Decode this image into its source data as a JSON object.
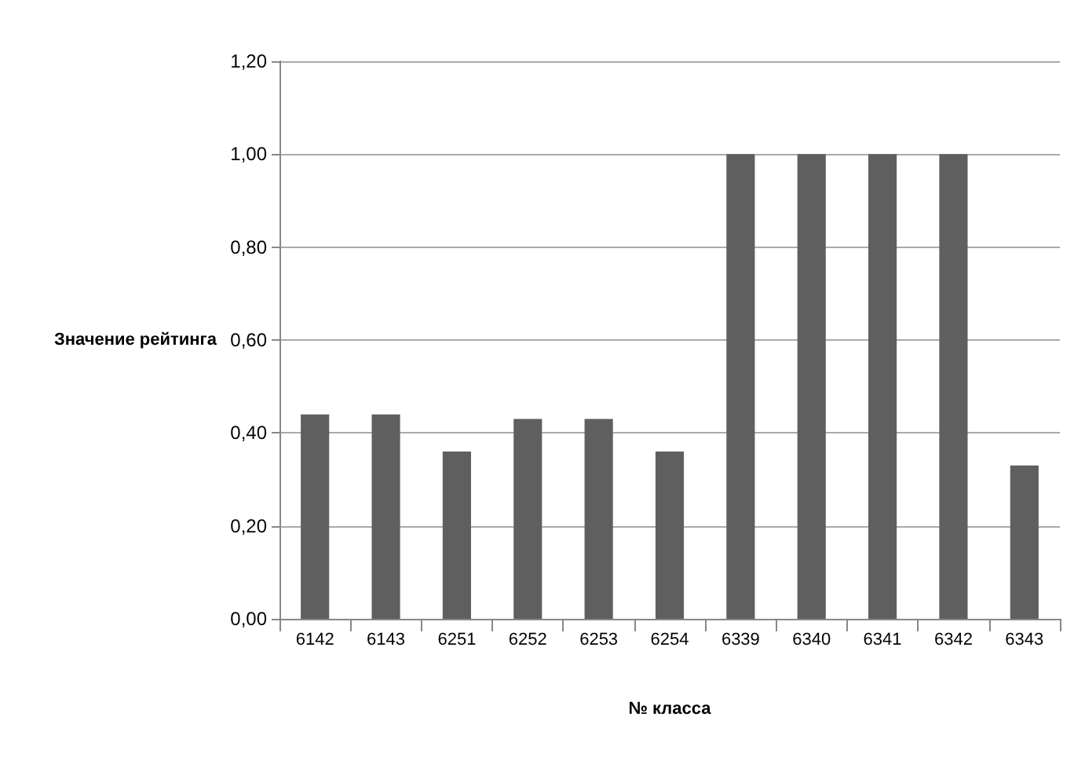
{
  "chart_data": {
    "type": "bar",
    "xlabel": "№ класса",
    "ylabel": "Значение рейтинга",
    "categories": [
      "6142",
      "6143",
      "6251",
      "6252",
      "6253",
      "6254",
      "6339",
      "6340",
      "6341",
      "6342",
      "6343"
    ],
    "values": [
      0.44,
      0.44,
      0.36,
      0.43,
      0.43,
      0.36,
      1,
      1,
      1,
      1,
      0.33
    ],
    "color": "#5f5f5f",
    "ylim": [
      0,
      1.2
    ],
    "yticks": [
      {
        "value": 0,
        "label": "0,00"
      },
      {
        "value": 0.2,
        "label": "0,20"
      },
      {
        "value": 0.4,
        "label": "0,40"
      },
      {
        "value": 0.6,
        "label": "0,60"
      },
      {
        "value": 0.8,
        "label": "0,80"
      },
      {
        "value": 1,
        "label": "1,00"
      },
      {
        "value": 1.2,
        "label": "1,20"
      }
    ],
    "grid": "y"
  }
}
